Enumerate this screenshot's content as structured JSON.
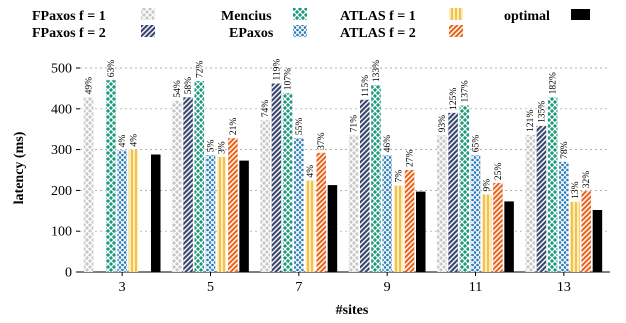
{
  "chart_data": {
    "type": "bar",
    "xlabel": "#sites",
    "ylabel": "latency (ms)",
    "ylim": [
      0,
      500
    ],
    "yticks": [
      0,
      100,
      200,
      300,
      400,
      500
    ],
    "grid": "dashed horizontal",
    "legend_placement": "top",
    "categories": [
      "3",
      "5",
      "7",
      "9",
      "11",
      "13"
    ],
    "series": [
      {
        "name": "FPaxos f = 1",
        "color": "#c8c8c8",
        "pattern": "x-hatch",
        "values": [
          428,
          420,
          372,
          335,
          335,
          336
        ],
        "labels": [
          "49%",
          "54%",
          "74%",
          "71%",
          "93%",
          "121%"
        ]
      },
      {
        "name": "FPaxos f = 2",
        "color": "#3a4670",
        "pattern": "diagonal",
        "values": [
          null,
          428,
          462,
          422,
          390,
          358
        ],
        "labels": [
          "",
          "58%",
          "119%",
          "115%",
          "125%",
          "135%"
        ]
      },
      {
        "name": "Mencius",
        "color": "#1a9a7a",
        "pattern": "x-hatch",
        "values": [
          470,
          468,
          438,
          458,
          408,
          428
        ],
        "labels": [
          "63%",
          "72%",
          "107%",
          "133%",
          "137%",
          "182%"
        ]
      },
      {
        "name": "EPaxos",
        "color": "#2e7dbc",
        "pattern": "cross-hatch",
        "values": [
          298,
          286,
          328,
          286,
          286,
          270
        ],
        "labels": [
          "4%",
          "5%",
          "55%",
          "46%",
          "65%",
          "78%"
        ]
      },
      {
        "name": "ATLAS f = 1",
        "color": "#f5c242",
        "pattern": "vertical",
        "values": [
          300,
          282,
          224,
          212,
          190,
          172
        ],
        "labels": [
          "4%",
          "3%",
          "4%",
          "7%",
          "9%",
          "13%"
        ]
      },
      {
        "name": "ATLAS f = 2",
        "color": "#e8661e",
        "pattern": "diagonal",
        "values": [
          null,
          328,
          292,
          250,
          218,
          198
        ],
        "labels": [
          "",
          "21%",
          "37%",
          "27%",
          "25%",
          "32%"
        ]
      },
      {
        "name": "optimal",
        "color": "#000000",
        "pattern": "solid",
        "values": [
          288,
          273,
          213,
          197,
          173,
          152
        ],
        "labels": [
          "",
          "",
          "",
          "",
          "",
          ""
        ]
      }
    ]
  },
  "legend": {
    "fpaxos_f1": "FPaxos f = 1",
    "fpaxos_f2": "FPaxos f = 2",
    "mencius": "Mencius",
    "epaxos": "EPaxos",
    "atlas_f1": "ATLAS f = 1",
    "atlas_f2": "ATLAS f = 2",
    "optimal": "optimal"
  }
}
